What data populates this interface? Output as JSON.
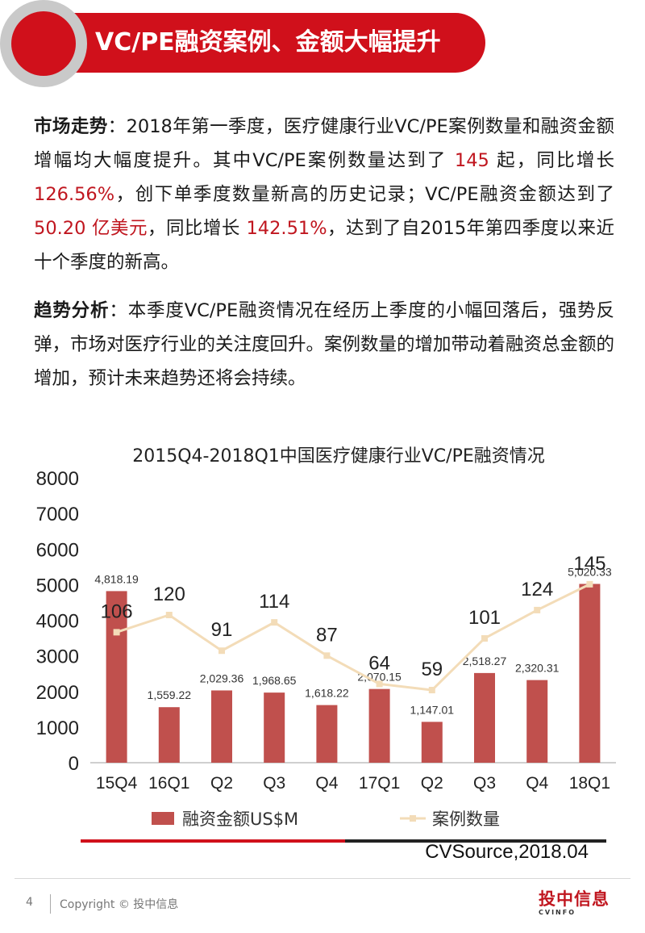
{
  "header": {
    "title": "VC/PE融资案例、金额大幅提升"
  },
  "para1": {
    "label": "市场走势",
    "t1": "：2018年第一季度，医疗健康行业VC/PE案例数量和融资金额增幅均大幅度提升。其中VC/PE案例数量达到了 ",
    "h1": "145",
    "t2": " 起，同比增长 ",
    "h2": "126.56%",
    "t3": "，创下单季度数量新高的历史记录；VC/PE融资金额达到了 ",
    "h3": "50.20 亿美元",
    "t4": "，同比增长 ",
    "h4": "142.51%",
    "t5": "，达到了自2015年第四季度以来近十个季度的新高。"
  },
  "para2": {
    "label": "趋势分析",
    "text": "：本季度VC/PE融资情况在经历上季度的小幅回落后，强势反弹，市场对医疗行业的关注度回升。案例数量的增加带动着融资总金额的增加，预计未来趋势还将会持续。"
  },
  "chart_data": {
    "type": "bar",
    "title": "2015Q4-2018Q1中国医疗健康行业VC/PE融资情况",
    "categories": [
      "15Q4",
      "16Q1",
      "Q2",
      "Q3",
      "Q4",
      "17Q1",
      "Q2",
      "Q3",
      "Q4",
      "18Q1"
    ],
    "ylim": [
      0,
      8000
    ],
    "yticks": [
      0,
      1000,
      2000,
      3000,
      4000,
      5000,
      6000,
      7000,
      8000
    ],
    "grid": false,
    "legend": "bottom",
    "series": [
      {
        "name": "融资金额US$M",
        "type": "bar",
        "color": "#c0504d",
        "values": [
          4818.19,
          1559.22,
          2029.36,
          1968.65,
          1618.22,
          2070.15,
          1147.01,
          2518.27,
          2320.31,
          5020.33
        ],
        "labels": [
          "4,818.19",
          "1,559.22",
          "2,029.36",
          "1,968.65",
          "1,618.22",
          "2,070.15",
          "1,147.01",
          "2,518.27",
          "2,320.31",
          "5,020.33"
        ]
      },
      {
        "name": "案例数量",
        "type": "line",
        "color": "#f3dcb8",
        "values": [
          106,
          120,
          91,
          114,
          87,
          64,
          59,
          101,
          124,
          145
        ]
      }
    ]
  },
  "source": "CVSource,2018.04",
  "footer": {
    "page": "4",
    "copyright": "Copyright © 投中信息",
    "logo_main": "投中信息",
    "logo_sub": "CVINFO"
  }
}
